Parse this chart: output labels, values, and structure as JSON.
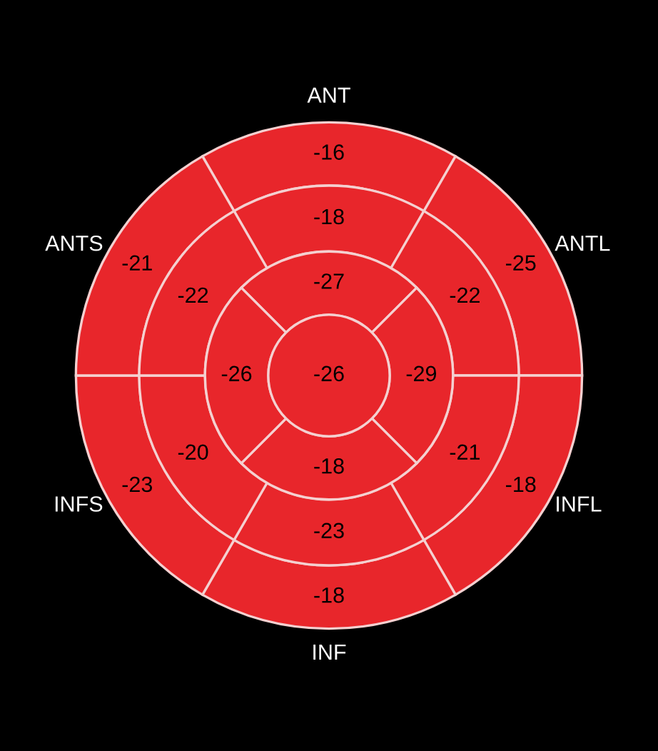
{
  "chart_data": [
    {
      "type": "other",
      "categories": [
        "ANT",
        "ANTL",
        "INFL",
        "INF",
        "INFS",
        "ANTS"
      ],
      "series": [
        {
          "color": "#e8262b",
          "values": [
            -16,
            -25,
            -18,
            -18,
            -23,
            -21
          ]
        },
        {
          "color": "#e8262b",
          "values": [
            -18,
            -22,
            -21,
            -23,
            -20,
            -22
          ]
        }
      ],
      "data_labels": true
    },
    {
      "type": "other",
      "categories": [
        null
      ],
      "series": [
        {
          "color": "#e8262b",
          "values": [
            -27
          ]
        }
      ],
      "data_labels": true
    },
    {
      "type": "other",
      "categories": [
        null
      ],
      "series": [
        {
          "color": "#e8262b",
          "values": [
            -29
          ]
        }
      ],
      "data_labels": true
    },
    {
      "type": "other",
      "categories": [
        null
      ],
      "series": [
        {
          "color": "#e8262b",
          "values": [
            -18
          ]
        }
      ],
      "data_labels": true
    },
    {
      "type": "other",
      "categories": [
        null
      ],
      "series": [
        {
          "color": "#e8262b",
          "values": [
            -26
          ]
        }
      ],
      "data_labels": true
    },
    {
      "type": "other",
      "categories": [
        null
      ],
      "series": [
        {
          "color": "#e8262b",
          "values": [
            -26
          ]
        }
      ],
      "data_labels": true
    }
  ]
}
